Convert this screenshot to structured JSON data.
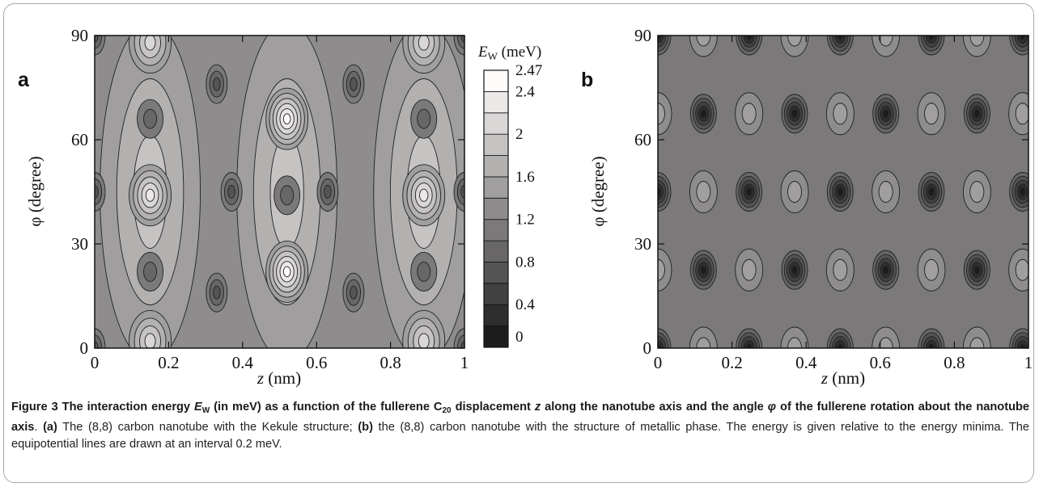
{
  "figure": {
    "panel_a": {
      "letter": "a",
      "xlabel_var": "z",
      "xlabel_unit": " (nm)",
      "ylabel": "φ (degree)",
      "xticks": [
        "0",
        "0.2",
        "0.4",
        "0.6",
        "0.8",
        "1"
      ],
      "yticks": [
        "0",
        "30",
        "60",
        "90"
      ]
    },
    "panel_b": {
      "letter": "b",
      "xlabel_var": "z",
      "xlabel_unit": " (nm)",
      "ylabel": "φ (degree)",
      "xticks": [
        "0",
        "0.2",
        "0.4",
        "0.6",
        "0.8",
        "1"
      ],
      "yticks": [
        "0",
        "30",
        "60",
        "90"
      ]
    },
    "colorbar": {
      "title_var": "E",
      "title_sub": "W",
      "title_unit": " (meV)",
      "labels": [
        "0",
        "0.4",
        "0.8",
        "1.2",
        "1.6",
        "2",
        "2.4",
        "2.47"
      ]
    }
  },
  "caption": {
    "bold_1": "Figure 3 The interaction energy ",
    "bold_E": "E",
    "bold_Esub": "W",
    "bold_2": " (in meV) as a function of the fullerene C",
    "bold_Csub": "20",
    "bold_3": " displacement ",
    "bold_z": "z",
    "bold_4": " along the nanotube axis and the angle ",
    "bold_phi": "φ",
    "bold_5": " of the fullerene rotation about the nanotube axis",
    "sep": ". ",
    "label_a": "(a)",
    "text_a": " The (8,8) carbon nanotube with the Kekule structure; ",
    "label_b": "(b)",
    "text_b": " the (8,8) carbon nanotube with the structure of metallic phase. The energy is given relative to the energy minima. The equipotential lines are drawn at an interval 0.2 meV."
  },
  "chart_data": [
    {
      "type": "heatmap",
      "title": "",
      "xlabel": "z (nm)",
      "ylabel": "φ (degree)",
      "xlim": [
        0,
        1
      ],
      "ylim": [
        0,
        90
      ],
      "zlabel": "E_W (meV)",
      "zlim": [
        0,
        2.47
      ],
      "contour_interval": 0.2,
      "x_period": 0.369,
      "minima_approx": [
        [
          0.0,
          45
        ],
        [
          0.33,
          15
        ],
        [
          0.33,
          75
        ],
        [
          0.7,
          45
        ],
        [
          0.63,
          15
        ]
      ],
      "maxima_approx": [
        [
          0.52,
          22
        ],
        [
          0.52,
          66
        ],
        [
          0.15,
          44
        ],
        [
          0.89,
          44
        ],
        [
          0.15,
          88
        ],
        [
          0.89,
          88
        ]
      ]
    },
    {
      "type": "heatmap",
      "title": "",
      "xlabel": "z (nm)",
      "ylabel": "φ (degree)",
      "xlim": [
        0,
        1
      ],
      "ylim": [
        0,
        90
      ],
      "zlabel": "E_W (meV)",
      "zlim": [
        0,
        2.47
      ],
      "contour_interval": 0.2,
      "x_period": 0.246,
      "y_period": 45,
      "minima_approx": [
        [
          0.0,
          45
        ],
        [
          0.123,
          22.5
        ],
        [
          0.123,
          67.5
        ],
        [
          0.246,
          45
        ],
        [
          0.0,
          0
        ],
        [
          0.0,
          90
        ]
      ]
    }
  ]
}
